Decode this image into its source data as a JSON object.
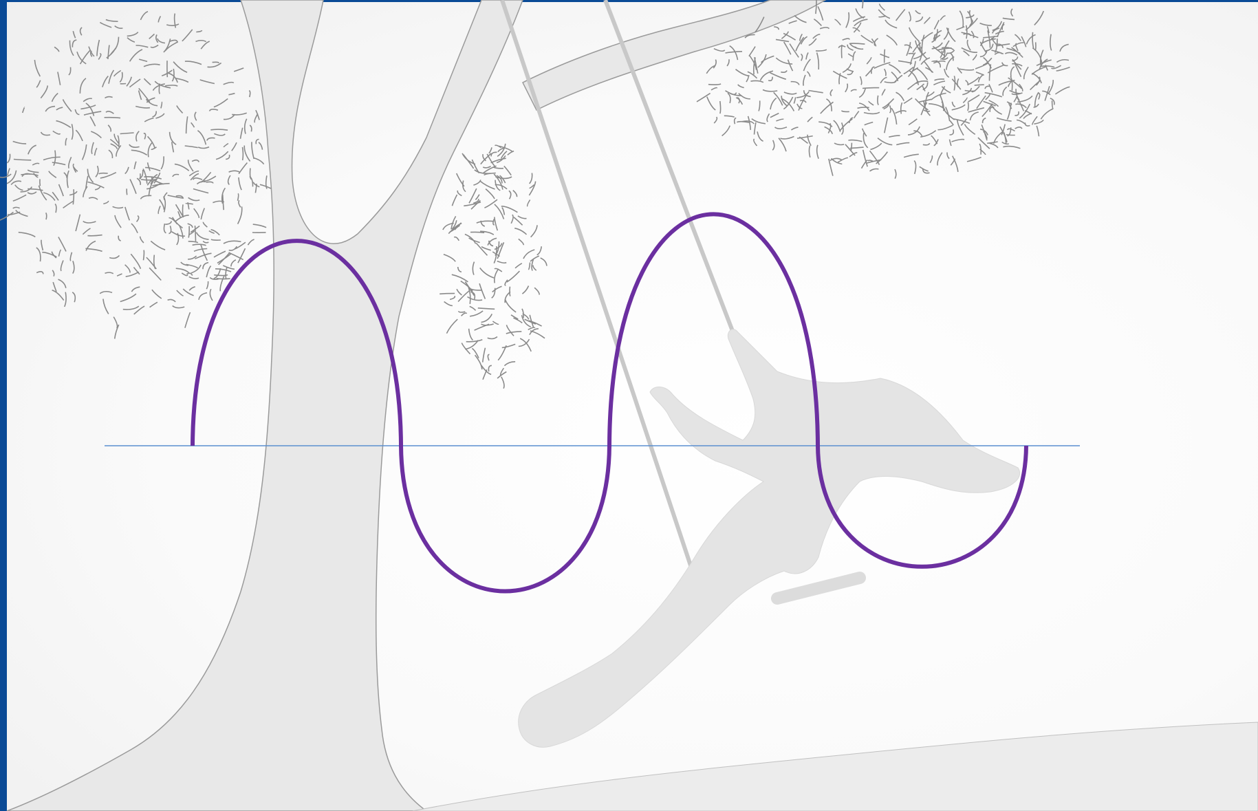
{
  "colors": {
    "frame": "#0a4a96",
    "wave": "#6b2fa0",
    "axis": "#5b8fd0",
    "illustration_fill": "#e8e8e8",
    "illustration_stroke": "#9a9a9a",
    "background": "#f7f7f7"
  },
  "illustration": {
    "subject": "tree-with-swing"
  },
  "wave": {
    "segments": [
      {
        "kind": "crest",
        "amplitude": 1.0
      },
      {
        "kind": "trough",
        "amplitude": 0.71
      },
      {
        "kind": "crest",
        "amplitude": 1.13
      },
      {
        "kind": "trough",
        "amplitude": 0.59
      }
    ]
  }
}
